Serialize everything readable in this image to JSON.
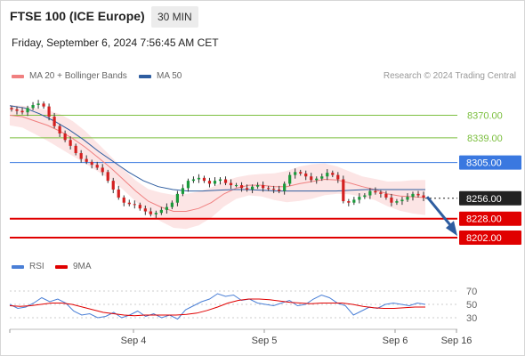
{
  "header": {
    "title": "FTSE 100 (ICE Europe)",
    "timeframe": "30 MIN",
    "datetime": "Friday, September 6, 2024 7:56:45 AM CET"
  },
  "legend": {
    "ma20": {
      "label": "MA 20 + Bollinger Bands",
      "color": "#f08080"
    },
    "ma50": {
      "label": "MA 50",
      "color": "#2e5da0"
    },
    "credit": "Research © 2024 Trading Central"
  },
  "rsi_legend": {
    "rsi": {
      "label": "RSI",
      "color": "#4a7fd6"
    },
    "ma9": {
      "label": "9MA",
      "color": "#e00000"
    }
  },
  "chart_data": [
    {
      "type": "candlestick",
      "title": "FTSE 100 (ICE Europe)",
      "timeframe": "30 MIN",
      "x_labels": [
        "Sep 4",
        "Sep 5",
        "Sep 6",
        "Sep 16"
      ],
      "ylim": [
        8180,
        8395
      ],
      "levels": [
        {
          "value": 8370.0,
          "label": "8370.00",
          "kind": "resistance",
          "color": "#7cbf3f"
        },
        {
          "value": 8339.0,
          "label": "8339.00",
          "kind": "resistance",
          "color": "#7cbf3f"
        },
        {
          "value": 8305.0,
          "label": "8305.00",
          "kind": "pivot",
          "color": "#3a78e0"
        },
        {
          "value": 8256.0,
          "label": "8256.00",
          "kind": "last",
          "color": "#222222"
        },
        {
          "value": 8228.0,
          "label": "8228.00",
          "kind": "support",
          "color": "#e00000"
        },
        {
          "value": 8202.0,
          "label": "8202.00",
          "kind": "support",
          "color": "#e00000"
        }
      ],
      "close_series": [
        8378,
        8376,
        8374,
        8380,
        8384,
        8386,
        8382,
        8368,
        8355,
        8345,
        8336,
        8328,
        8318,
        8310,
        8306,
        8302,
        8298,
        8292,
        8280,
        8268,
        8257,
        8250,
        8248,
        8247,
        8242,
        8238,
        8234,
        8236,
        8240,
        8244,
        8250,
        8262,
        8270,
        8280,
        8282,
        8284,
        8280,
        8276,
        8280,
        8282,
        8277,
        8274,
        8274,
        8270,
        8268,
        8272,
        8274,
        8270,
        8269,
        8268,
        8266,
        8276,
        8288,
        8292,
        8290,
        8286,
        8281,
        8283,
        8286,
        8291,
        8288,
        8282,
        8252,
        8250,
        8254,
        8258,
        8260,
        8266,
        8264,
        8262,
        8257,
        8250,
        8252,
        8254,
        8258,
        8262,
        8260,
        8257
      ],
      "ma20_series": [
        8370,
        8368,
        8362,
        8356,
        8348,
        8338,
        8326,
        8312,
        8298,
        8282,
        8266,
        8252,
        8244,
        8238,
        8238,
        8242,
        8250,
        8262,
        8270,
        8274,
        8274,
        8272,
        8272,
        8276,
        8279,
        8282,
        8281,
        8277,
        8272,
        8268,
        8262,
        8259,
        8258,
        8257
      ],
      "ma50_series": [
        8383,
        8380,
        8372,
        8362,
        8350,
        8336,
        8320,
        8306,
        8292,
        8280,
        8272,
        8268,
        8266,
        8266,
        8267,
        8268,
        8268,
        8267,
        8266,
        8266,
        8266,
        8266,
        8266,
        8267,
        8268,
        8268,
        8268,
        8268,
        8268
      ],
      "projection": {
        "from": 8258,
        "to": 8208
      }
    },
    {
      "type": "line",
      "title": "RSI",
      "ylim": [
        10,
        90
      ],
      "yticks": [
        30,
        50,
        70
      ],
      "series": [
        {
          "name": "RSI",
          "values": [
            50,
            44,
            46,
            52,
            60,
            54,
            58,
            52,
            40,
            34,
            36,
            30,
            32,
            38,
            30,
            34,
            40,
            32,
            36,
            30,
            34,
            28,
            42,
            48,
            54,
            58,
            66,
            62,
            64,
            56,
            58,
            52,
            50,
            48,
            52,
            56,
            48,
            50,
            58,
            64,
            60,
            52,
            48,
            34,
            40,
            46,
            44,
            50,
            52,
            50,
            48,
            52,
            50
          ]
        },
        {
          "name": "9MA",
          "values": [
            48,
            47,
            48,
            50,
            52,
            52,
            50,
            46,
            42,
            38,
            36,
            34,
            33,
            34,
            34,
            34,
            34,
            35,
            37,
            41,
            46,
            52,
            56,
            58,
            58,
            57,
            55,
            53,
            52,
            51,
            52,
            52,
            52,
            50,
            47,
            45,
            44,
            44,
            45,
            46,
            46
          ]
        }
      ]
    }
  ]
}
